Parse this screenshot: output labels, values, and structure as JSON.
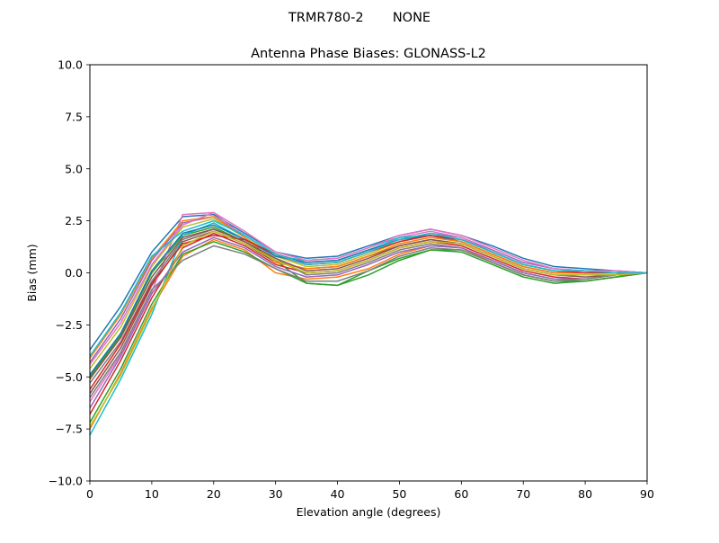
{
  "suptitle": "TRMR780-2       NONE",
  "chart_data": {
    "type": "line",
    "title": "Antenna Phase Biases: GLONASS-L2",
    "xlabel": "Elevation angle (degrees)",
    "ylabel": "Bias (mm)",
    "xlim": [
      0,
      90
    ],
    "ylim": [
      -10.0,
      10.0
    ],
    "xticks": [
      0,
      10,
      20,
      30,
      40,
      50,
      60,
      70,
      80,
      90
    ],
    "yticks": [
      -10.0,
      -7.5,
      -5.0,
      -2.5,
      0.0,
      2.5,
      5.0,
      7.5,
      10.0
    ],
    "xtick_labels": [
      "0",
      "10",
      "20",
      "30",
      "40",
      "50",
      "60",
      "70",
      "80",
      "90"
    ],
    "ytick_labels": [
      "−10.0",
      "−7.5",
      "−5.0",
      "−2.5",
      "0.0",
      "2.5",
      "5.0",
      "7.5",
      "10.0"
    ],
    "grid": false,
    "legend": "none",
    "x": [
      0,
      5,
      10,
      15,
      20,
      25,
      30,
      35,
      40,
      45,
      50,
      55,
      60,
      65,
      70,
      75,
      80,
      85,
      90
    ],
    "series": [
      {
        "color": "#1f77b4",
        "values": [
          -3.7,
          -1.6,
          1.0,
          2.7,
          2.8,
          1.9,
          1.0,
          0.7,
          0.8,
          1.3,
          1.8,
          2.1,
          1.8,
          1.3,
          0.7,
          0.3,
          0.2,
          0.1,
          0.0
        ]
      },
      {
        "color": "#ff7f0e",
        "values": [
          -7.5,
          -4.8,
          -1.7,
          0.8,
          1.6,
          1.1,
          0.0,
          -0.3,
          -0.2,
          0.2,
          0.9,
          1.3,
          1.2,
          0.5,
          -0.1,
          -0.4,
          -0.4,
          -0.2,
          0.0
        ]
      },
      {
        "color": "#2ca02c",
        "values": [
          -5.0,
          -3.0,
          0.0,
          1.8,
          2.2,
          1.5,
          0.6,
          -0.5,
          -0.6,
          0.1,
          0.7,
          1.1,
          1.0,
          0.4,
          -0.2,
          -0.5,
          -0.4,
          -0.2,
          0.0
        ]
      },
      {
        "color": "#d62728",
        "values": [
          -6.8,
          -4.2,
          -1.2,
          1.2,
          1.9,
          1.3,
          0.4,
          0.0,
          0.1,
          0.6,
          1.2,
          1.5,
          1.3,
          0.7,
          0.1,
          -0.2,
          -0.3,
          -0.1,
          0.0
        ]
      },
      {
        "color": "#9467bd",
        "values": [
          -4.3,
          -2.2,
          0.6,
          2.4,
          2.7,
          1.8,
          0.9,
          0.5,
          0.6,
          1.1,
          1.6,
          1.9,
          1.7,
          1.1,
          0.5,
          0.2,
          0.1,
          0.1,
          0.0
        ]
      },
      {
        "color": "#8c564b",
        "values": [
          -5.8,
          -3.6,
          -0.6,
          1.5,
          2.0,
          1.4,
          0.5,
          0.2,
          0.3,
          0.8,
          1.3,
          1.6,
          1.4,
          0.8,
          0.2,
          -0.1,
          -0.2,
          -0.1,
          0.0
        ]
      },
      {
        "color": "#e377c2",
        "values": [
          -6.2,
          -3.9,
          -0.9,
          2.8,
          2.9,
          1.7,
          0.8,
          0.4,
          0.5,
          1.0,
          1.7,
          2.0,
          1.7,
          1.0,
          0.4,
          0.1,
          0.0,
          0.0,
          0.0
        ]
      },
      {
        "color": "#7f7f7f",
        "values": [
          -5.3,
          -3.3,
          -0.4,
          1.6,
          2.1,
          1.5,
          0.7,
          -0.1,
          0.0,
          0.5,
          1.1,
          1.4,
          1.2,
          0.6,
          0.0,
          -0.3,
          -0.3,
          -0.1,
          0.0
        ]
      },
      {
        "color": "#bcbd22",
        "values": [
          -4.6,
          -2.6,
          0.3,
          2.2,
          2.6,
          1.7,
          0.8,
          0.3,
          0.4,
          0.9,
          1.5,
          1.8,
          1.5,
          0.9,
          0.3,
          0.0,
          0.0,
          0.0,
          0.0
        ]
      },
      {
        "color": "#17becf",
        "values": [
          -7.8,
          -5.1,
          -2.0,
          1.8,
          2.4,
          1.6,
          0.8,
          0.6,
          0.7,
          1.2,
          1.7,
          1.8,
          1.6,
          1.0,
          0.4,
          0.1,
          0.1,
          0.0,
          0.0
        ]
      },
      {
        "color": "#1f77b4",
        "values": [
          -4.9,
          -2.9,
          0.1,
          1.9,
          2.3,
          1.6,
          0.8,
          0.5,
          0.6,
          1.1,
          1.6,
          1.8,
          1.5,
          0.9,
          0.3,
          0.0,
          0.0,
          0.0,
          0.0
        ]
      },
      {
        "color": "#ff7f0e",
        "values": [
          -4.1,
          -2.0,
          0.7,
          2.5,
          2.7,
          1.7,
          0.5,
          0.2,
          0.3,
          0.8,
          1.4,
          1.7,
          1.5,
          0.9,
          0.3,
          0.0,
          0.0,
          0.0,
          0.0
        ]
      },
      {
        "color": "#2ca02c",
        "values": [
          -7.2,
          -4.6,
          -1.5,
          0.9,
          1.5,
          1.0,
          0.2,
          -0.5,
          -0.6,
          -0.1,
          0.6,
          1.1,
          1.1,
          0.5,
          -0.1,
          -0.4,
          -0.4,
          -0.2,
          0.0
        ]
      },
      {
        "color": "#d62728",
        "values": [
          -5.6,
          -3.4,
          -0.5,
          1.4,
          1.8,
          1.6,
          0.9,
          0.4,
          0.5,
          1.0,
          1.5,
          1.8,
          1.6,
          1.0,
          0.4,
          0.1,
          0.0,
          0.0,
          0.0
        ]
      },
      {
        "color": "#9467bd",
        "values": [
          -6.5,
          -4.0,
          -1.0,
          1.0,
          1.7,
          1.2,
          0.3,
          -0.2,
          -0.1,
          0.4,
          1.0,
          1.3,
          1.2,
          0.6,
          0.0,
          -0.3,
          -0.3,
          -0.1,
          0.0
        ]
      },
      {
        "color": "#8c564b",
        "values": [
          -5.1,
          -3.1,
          -0.2,
          1.7,
          2.1,
          1.5,
          0.7,
          0.1,
          0.2,
          0.7,
          1.3,
          1.6,
          1.4,
          0.8,
          0.2,
          -0.1,
          -0.1,
          -0.1,
          0.0
        ]
      },
      {
        "color": "#e377c2",
        "values": [
          -4.4,
          -2.4,
          0.4,
          2.3,
          2.9,
          2.0,
          1.0,
          0.6,
          0.7,
          1.2,
          1.8,
          2.1,
          1.8,
          1.2,
          0.6,
          0.2,
          0.1,
          0.1,
          0.0
        ]
      },
      {
        "color": "#7f7f7f",
        "values": [
          -6.0,
          -3.8,
          -0.8,
          0.6,
          1.3,
          0.9,
          0.2,
          -0.4,
          -0.4,
          0.1,
          0.8,
          1.2,
          1.1,
          0.5,
          -0.1,
          -0.4,
          -0.3,
          -0.1,
          0.0
        ]
      },
      {
        "color": "#bcbd22",
        "values": [
          -7.4,
          -4.9,
          -1.8,
          1.3,
          2.0,
          1.4,
          0.6,
          0.0,
          0.1,
          0.6,
          1.2,
          1.5,
          1.4,
          0.8,
          0.2,
          -0.1,
          -0.1,
          -0.1,
          0.0
        ]
      },
      {
        "color": "#17becf",
        "values": [
          -4.0,
          -1.9,
          0.8,
          2.0,
          2.5,
          1.8,
          0.9,
          0.4,
          0.5,
          1.0,
          1.6,
          1.9,
          1.6,
          1.0,
          0.4,
          0.1,
          0.1,
          0.0,
          0.0
        ]
      }
    ]
  }
}
